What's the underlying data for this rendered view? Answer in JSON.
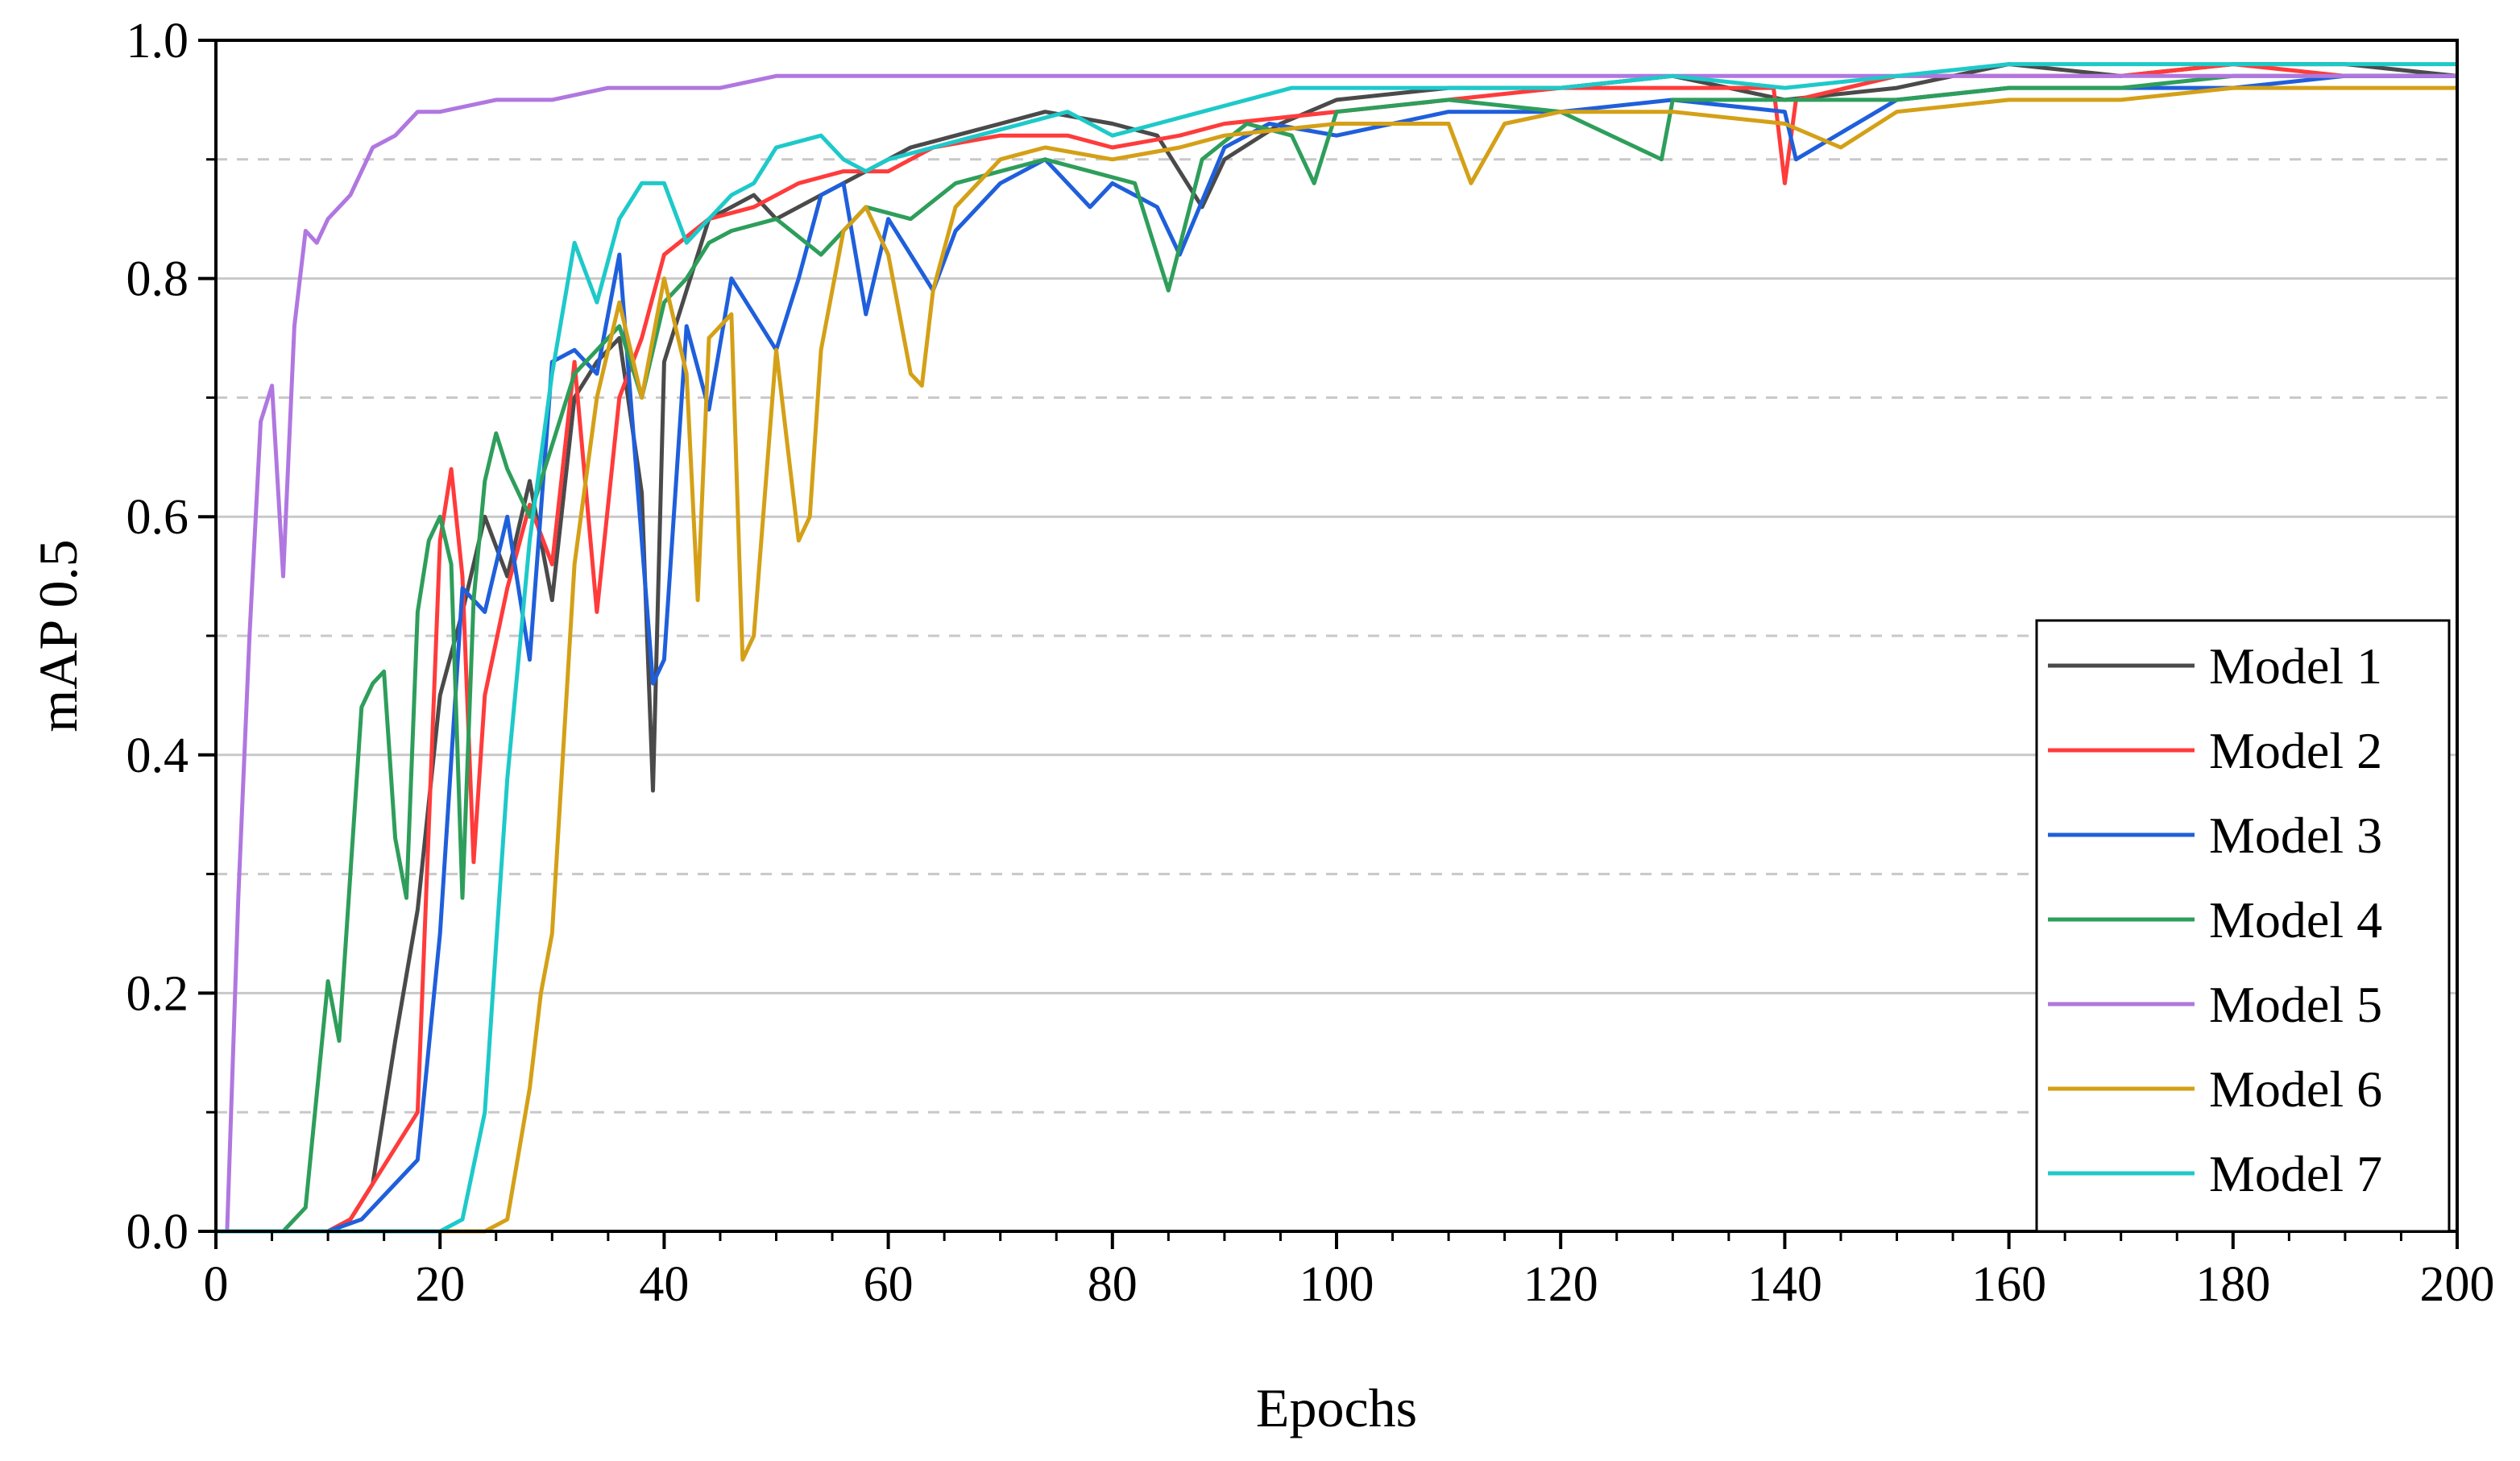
{
  "chart_data": {
    "type": "line",
    "xlabel": "Epochs",
    "ylabel": "mAP 0.5",
    "xlim": [
      0,
      200
    ],
    "ylim": [
      0.0,
      1.0
    ],
    "xticks": [
      "0",
      "20",
      "40",
      "60",
      "80",
      "100",
      "120",
      "140",
      "160",
      "180",
      "200"
    ],
    "yticks": [
      "0.0",
      "0.2",
      "0.4",
      "0.6",
      "0.8",
      "1.0"
    ],
    "grid": "horizontal (solid at major ticks, dashed at minor ticks)",
    "legend_position": "bottom-right",
    "series": [
      {
        "name": "Model 1",
        "color": "#4a4a4a",
        "x": [
          0,
          10,
          12,
          14,
          16,
          18,
          20,
          22,
          24,
          26,
          28,
          30,
          32,
          34,
          36,
          38,
          39,
          40,
          42,
          44,
          46,
          48,
          50,
          54,
          58,
          62,
          66,
          70,
          74,
          80,
          84,
          88,
          90,
          95,
          100,
          110,
          120,
          130,
          140,
          150,
          160,
          170,
          180,
          190,
          200
        ],
        "y": [
          0.0,
          0.0,
          0.01,
          0.04,
          0.16,
          0.27,
          0.45,
          0.52,
          0.6,
          0.55,
          0.63,
          0.53,
          0.7,
          0.73,
          0.75,
          0.62,
          0.37,
          0.73,
          0.79,
          0.85,
          0.86,
          0.87,
          0.85,
          0.87,
          0.89,
          0.91,
          0.92,
          0.93,
          0.94,
          0.93,
          0.92,
          0.86,
          0.9,
          0.93,
          0.95,
          0.96,
          0.96,
          0.97,
          0.95,
          0.96,
          0.98,
          0.97,
          0.98,
          0.98,
          0.97
        ]
      },
      {
        "name": "Model 2",
        "color": "#ff3b3b",
        "x": [
          0,
          10,
          12,
          14,
          16,
          18,
          20,
          21,
          22,
          23,
          24,
          26,
          28,
          30,
          32,
          34,
          36,
          38,
          40,
          44,
          48,
          52,
          56,
          60,
          64,
          70,
          76,
          80,
          86,
          90,
          100,
          110,
          120,
          130,
          139,
          140,
          141,
          150,
          160,
          170,
          180,
          190,
          200
        ],
        "y": [
          0.0,
          0.0,
          0.01,
          0.04,
          0.07,
          0.1,
          0.58,
          0.64,
          0.55,
          0.31,
          0.45,
          0.54,
          0.61,
          0.56,
          0.73,
          0.52,
          0.7,
          0.75,
          0.82,
          0.85,
          0.86,
          0.88,
          0.89,
          0.89,
          0.91,
          0.92,
          0.92,
          0.91,
          0.92,
          0.93,
          0.94,
          0.95,
          0.96,
          0.96,
          0.96,
          0.88,
          0.95,
          0.97,
          0.97,
          0.97,
          0.98,
          0.97,
          0.97
        ]
      },
      {
        "name": "Model 3",
        "color": "#1f5fdb",
        "x": [
          0,
          10,
          13,
          16,
          18,
          20,
          22,
          24,
          26,
          28,
          30,
          32,
          34,
          36,
          38,
          39,
          40,
          42,
          44,
          46,
          48,
          50,
          52,
          54,
          56,
          58,
          60,
          62,
          64,
          66,
          70,
          74,
          78,
          80,
          84,
          86,
          90,
          94,
          100,
          110,
          120,
          130,
          140,
          141,
          150,
          160,
          170,
          180,
          190,
          200
        ],
        "y": [
          0.0,
          0.0,
          0.01,
          0.04,
          0.06,
          0.25,
          0.54,
          0.52,
          0.6,
          0.48,
          0.73,
          0.74,
          0.72,
          0.82,
          0.58,
          0.46,
          0.48,
          0.76,
          0.69,
          0.8,
          0.77,
          0.74,
          0.8,
          0.87,
          0.88,
          0.77,
          0.85,
          0.82,
          0.79,
          0.84,
          0.88,
          0.9,
          0.86,
          0.88,
          0.86,
          0.82,
          0.91,
          0.93,
          0.92,
          0.94,
          0.94,
          0.95,
          0.94,
          0.9,
          0.95,
          0.96,
          0.96,
          0.96,
          0.97,
          0.97
        ]
      },
      {
        "name": "Model 4",
        "color": "#2e9e5b",
        "x": [
          0,
          6,
          8,
          10,
          11,
          12,
          13,
          14,
          15,
          16,
          17,
          18,
          19,
          20,
          21,
          22,
          23,
          24,
          25,
          26,
          28,
          30,
          32,
          34,
          36,
          38,
          40,
          42,
          44,
          46,
          50,
          54,
          58,
          62,
          66,
          70,
          74,
          78,
          82,
          85,
          88,
          92,
          96,
          98,
          100,
          110,
          120,
          129,
          130,
          140,
          150,
          160,
          170,
          180,
          190,
          200
        ],
        "y": [
          0.0,
          0.0,
          0.02,
          0.21,
          0.16,
          0.3,
          0.44,
          0.46,
          0.47,
          0.33,
          0.28,
          0.52,
          0.58,
          0.6,
          0.56,
          0.28,
          0.53,
          0.63,
          0.67,
          0.64,
          0.6,
          0.66,
          0.72,
          0.74,
          0.76,
          0.7,
          0.78,
          0.8,
          0.83,
          0.84,
          0.85,
          0.82,
          0.86,
          0.85,
          0.88,
          0.89,
          0.9,
          0.89,
          0.88,
          0.79,
          0.9,
          0.93,
          0.92,
          0.88,
          0.94,
          0.95,
          0.94,
          0.9,
          0.95,
          0.95,
          0.95,
          0.96,
          0.96,
          0.97,
          0.97,
          0.97
        ]
      },
      {
        "name": "Model 5",
        "color": "#b077e0",
        "x": [
          0,
          1,
          2,
          3,
          4,
          5,
          6,
          7,
          8,
          9,
          10,
          12,
          14,
          16,
          18,
          20,
          25,
          30,
          35,
          40,
          45,
          50,
          60,
          70,
          80,
          90,
          100,
          120,
          140,
          160,
          180,
          200
        ],
        "y": [
          0.0,
          0.0,
          0.28,
          0.5,
          0.68,
          0.71,
          0.55,
          0.76,
          0.84,
          0.83,
          0.85,
          0.87,
          0.91,
          0.92,
          0.94,
          0.94,
          0.95,
          0.95,
          0.96,
          0.96,
          0.96,
          0.97,
          0.97,
          0.97,
          0.97,
          0.97,
          0.97,
          0.97,
          0.97,
          0.97,
          0.97,
          0.97
        ]
      },
      {
        "name": "Model 6",
        "color": "#d4a017",
        "x": [
          0,
          18,
          24,
          26,
          28,
          29,
          30,
          32,
          34,
          36,
          38,
          40,
          42,
          43,
          44,
          46,
          47,
          48,
          50,
          52,
          53,
          54,
          56,
          58,
          60,
          62,
          63,
          64,
          66,
          70,
          74,
          80,
          86,
          90,
          100,
          110,
          112,
          115,
          120,
          130,
          140,
          145,
          150,
          160,
          170,
          180,
          190,
          200
        ],
        "y": [
          0.0,
          0.0,
          0.0,
          0.01,
          0.12,
          0.2,
          0.25,
          0.56,
          0.7,
          0.78,
          0.7,
          0.8,
          0.72,
          0.53,
          0.75,
          0.77,
          0.48,
          0.5,
          0.74,
          0.58,
          0.6,
          0.74,
          0.84,
          0.86,
          0.82,
          0.72,
          0.71,
          0.79,
          0.86,
          0.9,
          0.91,
          0.9,
          0.91,
          0.92,
          0.93,
          0.93,
          0.88,
          0.93,
          0.94,
          0.94,
          0.93,
          0.91,
          0.94,
          0.95,
          0.95,
          0.96,
          0.96,
          0.96
        ]
      },
      {
        "name": "Model 7",
        "color": "#1ec9c9",
        "x": [
          0,
          20,
          22,
          24,
          26,
          28,
          30,
          32,
          34,
          36,
          38,
          40,
          42,
          44,
          46,
          48,
          50,
          54,
          56,
          58,
          60,
          64,
          68,
          72,
          76,
          80,
          84,
          88,
          92,
          96,
          100,
          110,
          120,
          130,
          140,
          150,
          160,
          170,
          180,
          190,
          200
        ],
        "y": [
          0.0,
          0.0,
          0.01,
          0.1,
          0.38,
          0.58,
          0.72,
          0.83,
          0.78,
          0.85,
          0.88,
          0.88,
          0.83,
          0.85,
          0.87,
          0.88,
          0.91,
          0.92,
          0.9,
          0.89,
          0.9,
          0.91,
          0.92,
          0.93,
          0.94,
          0.92,
          0.93,
          0.94,
          0.95,
          0.96,
          0.96,
          0.96,
          0.96,
          0.97,
          0.96,
          0.97,
          0.98,
          0.98,
          0.98,
          0.98,
          0.98
        ]
      }
    ]
  }
}
